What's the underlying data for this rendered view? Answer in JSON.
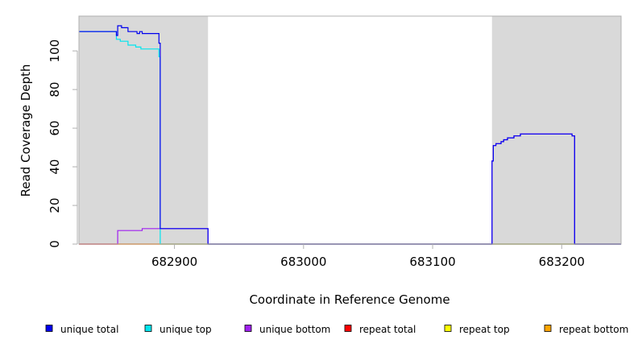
{
  "chart_data": {
    "type": "line",
    "xlabel": "Coordinate in Reference Genome",
    "ylabel": "Read Coverage Depth",
    "xlim": [
      682826,
      683246
    ],
    "ylim": [
      0,
      118
    ],
    "x_ticks": [
      682900,
      683000,
      683100,
      683200
    ],
    "y_ticks": [
      0,
      20,
      40,
      60,
      80,
      100
    ],
    "shaded_regions": [
      [
        682826,
        682926
      ],
      [
        683146,
        683246
      ]
    ],
    "grid": false,
    "legend_position": "bottom",
    "colors": {
      "shade": "#d9d9d9",
      "unique_total": "#0000ee",
      "unique_top": "#00e5ee",
      "unique_bottom": "#a020f0",
      "repeat_total": "#ff0000",
      "repeat_top": "#ffff00",
      "repeat_bottom": "#ffa500"
    },
    "series": [
      {
        "name": "unique total",
        "color": "#0000ee",
        "points": [
          [
            682826,
            110
          ],
          [
            682855,
            110
          ],
          [
            682855,
            108
          ],
          [
            682856,
            108
          ],
          [
            682856,
            113
          ],
          [
            682859,
            113
          ],
          [
            682859,
            112
          ],
          [
            682864,
            112
          ],
          [
            682864,
            110
          ],
          [
            682871,
            110
          ],
          [
            682871,
            109
          ],
          [
            682873,
            109
          ],
          [
            682873,
            110
          ],
          [
            682875,
            110
          ],
          [
            682875,
            109
          ],
          [
            682888,
            109
          ],
          [
            682888,
            104
          ],
          [
            682889,
            104
          ],
          [
            682889,
            96
          ],
          [
            682889,
            8
          ],
          [
            682926,
            8
          ],
          [
            682926,
            0
          ],
          [
            683146,
            0
          ],
          [
            683146,
            43
          ],
          [
            683147,
            43
          ],
          [
            683147,
            51
          ],
          [
            683149,
            51
          ],
          [
            683149,
            52
          ],
          [
            683153,
            52
          ],
          [
            683153,
            53
          ],
          [
            683155,
            53
          ],
          [
            683155,
            54
          ],
          [
            683158,
            54
          ],
          [
            683158,
            55
          ],
          [
            683163,
            55
          ],
          [
            683163,
            56
          ],
          [
            683168,
            56
          ],
          [
            683168,
            57
          ],
          [
            683208,
            57
          ],
          [
            683208,
            56
          ],
          [
            683210,
            56
          ],
          [
            683210,
            0
          ],
          [
            683246,
            0
          ]
        ]
      },
      {
        "name": "unique top",
        "color": "#00e5ee",
        "points": [
          [
            682826,
            110
          ],
          [
            682855,
            110
          ],
          [
            682855,
            106
          ],
          [
            682858,
            106
          ],
          [
            682858,
            105
          ],
          [
            682864,
            105
          ],
          [
            682864,
            103
          ],
          [
            682870,
            103
          ],
          [
            682870,
            102
          ],
          [
            682874,
            102
          ],
          [
            682874,
            101
          ],
          [
            682888,
            101
          ],
          [
            682888,
            97
          ],
          [
            682889,
            97
          ],
          [
            682889,
            0
          ],
          [
            682926,
            0
          ],
          [
            683146,
            0
          ],
          [
            683210,
            0
          ],
          [
            683246,
            0
          ]
        ]
      },
      {
        "name": "unique bottom",
        "color": "#a020f0",
        "points": [
          [
            682826,
            0
          ],
          [
            682856,
            0
          ],
          [
            682856,
            7
          ],
          [
            682875,
            7
          ],
          [
            682875,
            8
          ],
          [
            682926,
            8
          ],
          [
            682926,
            0
          ],
          [
            683146,
            0
          ],
          [
            683146,
            43
          ],
          [
            683147,
            43
          ],
          [
            683147,
            51
          ],
          [
            683149,
            51
          ],
          [
            683149,
            52
          ],
          [
            683153,
            52
          ],
          [
            683153,
            53
          ],
          [
            683155,
            53
          ],
          [
            683155,
            54
          ],
          [
            683158,
            54
          ],
          [
            683158,
            55
          ],
          [
            683163,
            55
          ],
          [
            683163,
            56
          ],
          [
            683168,
            56
          ],
          [
            683168,
            57
          ],
          [
            683208,
            57
          ],
          [
            683208,
            56
          ],
          [
            683210,
            56
          ],
          [
            683210,
            0
          ],
          [
            683246,
            0
          ]
        ]
      },
      {
        "name": "repeat total",
        "color": "#ff0000",
        "points": [
          [
            682826,
            0
          ],
          [
            682926,
            0
          ],
          [
            683146,
            0
          ],
          [
            683246,
            0
          ]
        ]
      },
      {
        "name": "repeat top",
        "color": "#ffff00",
        "points": [
          [
            682826,
            0
          ],
          [
            682926,
            0
          ],
          [
            683146,
            0
          ],
          [
            683246,
            0
          ]
        ]
      },
      {
        "name": "repeat bottom",
        "color": "#ffa500",
        "points": [
          [
            682826,
            0
          ],
          [
            682926,
            0
          ],
          [
            683146,
            0
          ],
          [
            683246,
            0
          ]
        ]
      }
    ]
  },
  "legend": {
    "items": [
      {
        "label": "unique total",
        "color": "#0000ee"
      },
      {
        "label": "unique top",
        "color": "#00e5ee"
      },
      {
        "label": "unique bottom",
        "color": "#a020f0"
      },
      {
        "label": "repeat total",
        "color": "#ff0000"
      },
      {
        "label": "repeat top",
        "color": "#ffff00"
      },
      {
        "label": "repeat bottom",
        "color": "#ffa500"
      }
    ]
  }
}
